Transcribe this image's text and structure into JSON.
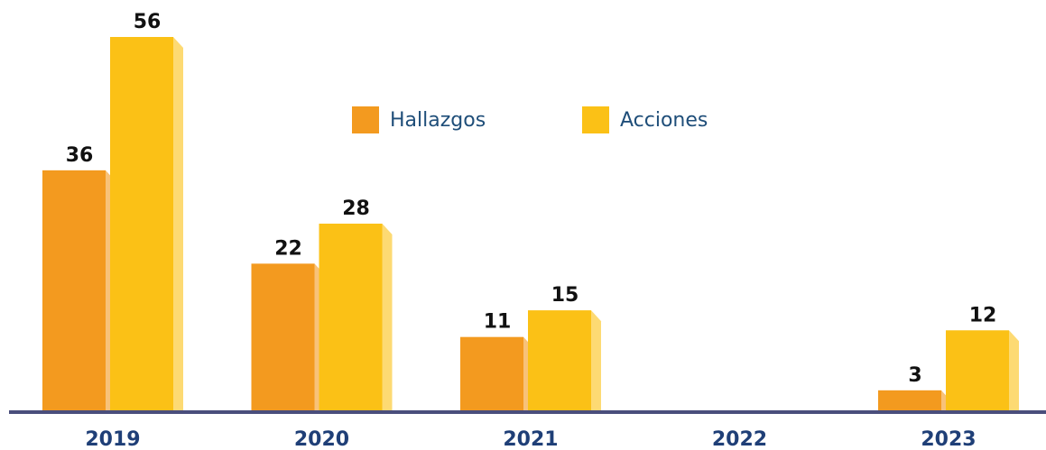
{
  "chart_data": {
    "type": "bar",
    "categories": [
      "2019",
      "2020",
      "2021",
      "2022",
      "2023"
    ],
    "series": [
      {
        "name": "Hallazgos",
        "color": "#f39a1f",
        "values": [
          36,
          22,
          11,
          null,
          3
        ]
      },
      {
        "name": "Acciones",
        "color": "#fbc116",
        "values": [
          56,
          28,
          15,
          null,
          12
        ]
      }
    ]
  }
}
